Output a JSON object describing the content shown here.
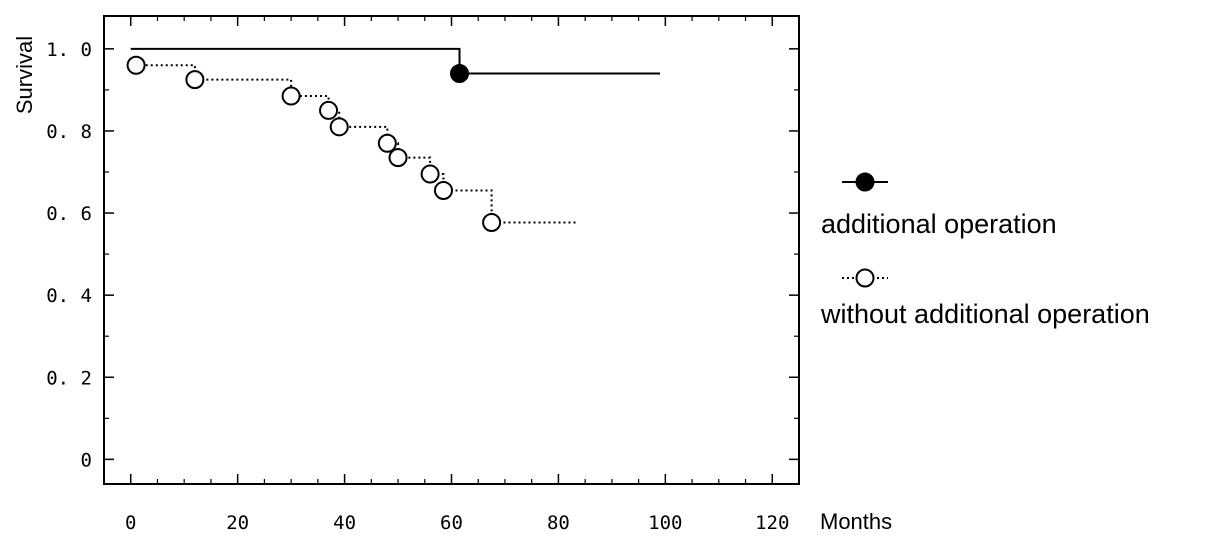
{
  "chart_data": {
    "type": "line",
    "subtype": "kaplan-meier step",
    "title": "",
    "xlabel": "Months",
    "ylabel": "Survival",
    "xlim": [
      -5,
      125
    ],
    "ylim": [
      -0.06,
      1.08
    ],
    "x_ticks": [
      0,
      20,
      40,
      60,
      80,
      100,
      120
    ],
    "x_tick_labels": [
      "0",
      "20",
      "40",
      "60",
      "80",
      "100",
      "120"
    ],
    "y_ticks": [
      0,
      0.2,
      0.4,
      0.6,
      0.8,
      1.0
    ],
    "y_tick_labels": [
      "0",
      "0. 2",
      "0. 4",
      "0. 6",
      "0. 8",
      "1. 0"
    ],
    "grid": false,
    "legend_position": "right",
    "series": [
      {
        "name": "additional operation",
        "line_style": "solid",
        "marker": "filled-circle",
        "steps": [
          [
            0,
            1.0
          ],
          [
            61.5,
            0.94
          ],
          [
            99,
            0.94
          ]
        ],
        "events": [
          [
            61.5,
            0.94
          ]
        ]
      },
      {
        "name": "without additional operation",
        "line_style": "dotted",
        "marker": "open-circle",
        "steps": [
          [
            0,
            0.96
          ],
          [
            12,
            0.925
          ],
          [
            30,
            0.885
          ],
          [
            37,
            0.85
          ],
          [
            39,
            0.81
          ],
          [
            48,
            0.77
          ],
          [
            50,
            0.735
          ],
          [
            56,
            0.695
          ],
          [
            58.5,
            0.655
          ],
          [
            67.5,
            0.577
          ],
          [
            83.5,
            0.577
          ]
        ],
        "events": [
          [
            1,
            0.96
          ],
          [
            12,
            0.925
          ],
          [
            30,
            0.885
          ],
          [
            37,
            0.85
          ],
          [
            39,
            0.81
          ],
          [
            48,
            0.77
          ],
          [
            50,
            0.735
          ],
          [
            56,
            0.695
          ],
          [
            58.5,
            0.655
          ],
          [
            67.5,
            0.577
          ]
        ]
      }
    ],
    "colors": {
      "line": "#000000",
      "open_marker_fill": "#ffffff",
      "filled_marker_fill": "#000000"
    }
  }
}
